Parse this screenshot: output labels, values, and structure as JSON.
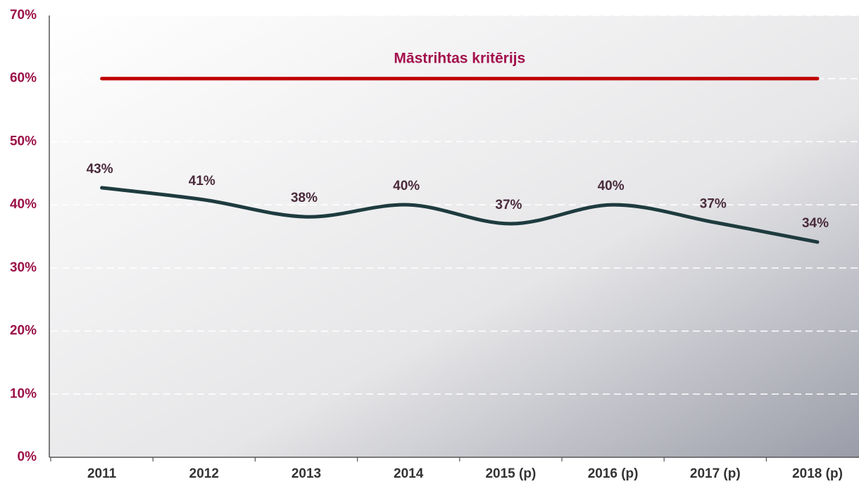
{
  "chart_data": {
    "type": "line",
    "categories": [
      "2011",
      "2012",
      "2013",
      "2014",
      "2015 (p)",
      "2016 (p)",
      "2017 (p)",
      "2018 (p)"
    ],
    "series": [
      {
        "name": "Māstrihtas kritērijs",
        "color": "#c00000",
        "values": [
          60,
          60,
          60,
          60,
          60,
          60,
          60,
          60
        ]
      },
      {
        "color": "#1e3b3e",
        "values": [
          42.7,
          40.8,
          38.1,
          40.0,
          37.0,
          40.0,
          37.2,
          34.1
        ],
        "value_labels": [
          "43%",
          "41%",
          "38%",
          "40%",
          "37%",
          "40%",
          "37%",
          "34%"
        ]
      }
    ],
    "ylim": [
      0,
      70
    ],
    "yticks": [
      {
        "value": 0,
        "label": "0%"
      },
      {
        "value": 10,
        "label": "10%"
      },
      {
        "value": 20,
        "label": "20%"
      },
      {
        "value": 30,
        "label": "30%"
      },
      {
        "value": 40,
        "label": "40%"
      },
      {
        "value": 50,
        "label": "50%"
      },
      {
        "value": 60,
        "label": "60%"
      },
      {
        "value": 70,
        "label": "70%"
      }
    ],
    "grid": true
  }
}
